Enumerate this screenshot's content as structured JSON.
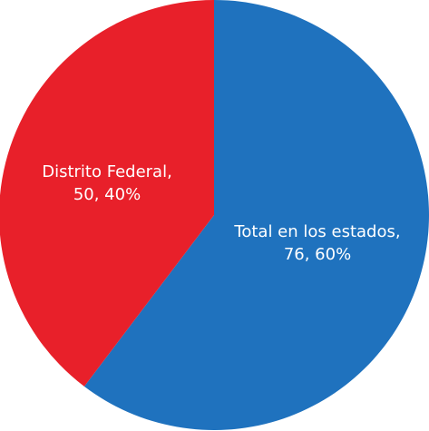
{
  "chart_data": {
    "type": "pie",
    "categories": [
      "Total en los estados,",
      "Distrito Federal,"
    ],
    "values": [
      76,
      50
    ],
    "value_labels": [
      "76, 60%",
      "50, 40%"
    ],
    "colors": [
      "#1f72be",
      "#e8202a"
    ]
  }
}
